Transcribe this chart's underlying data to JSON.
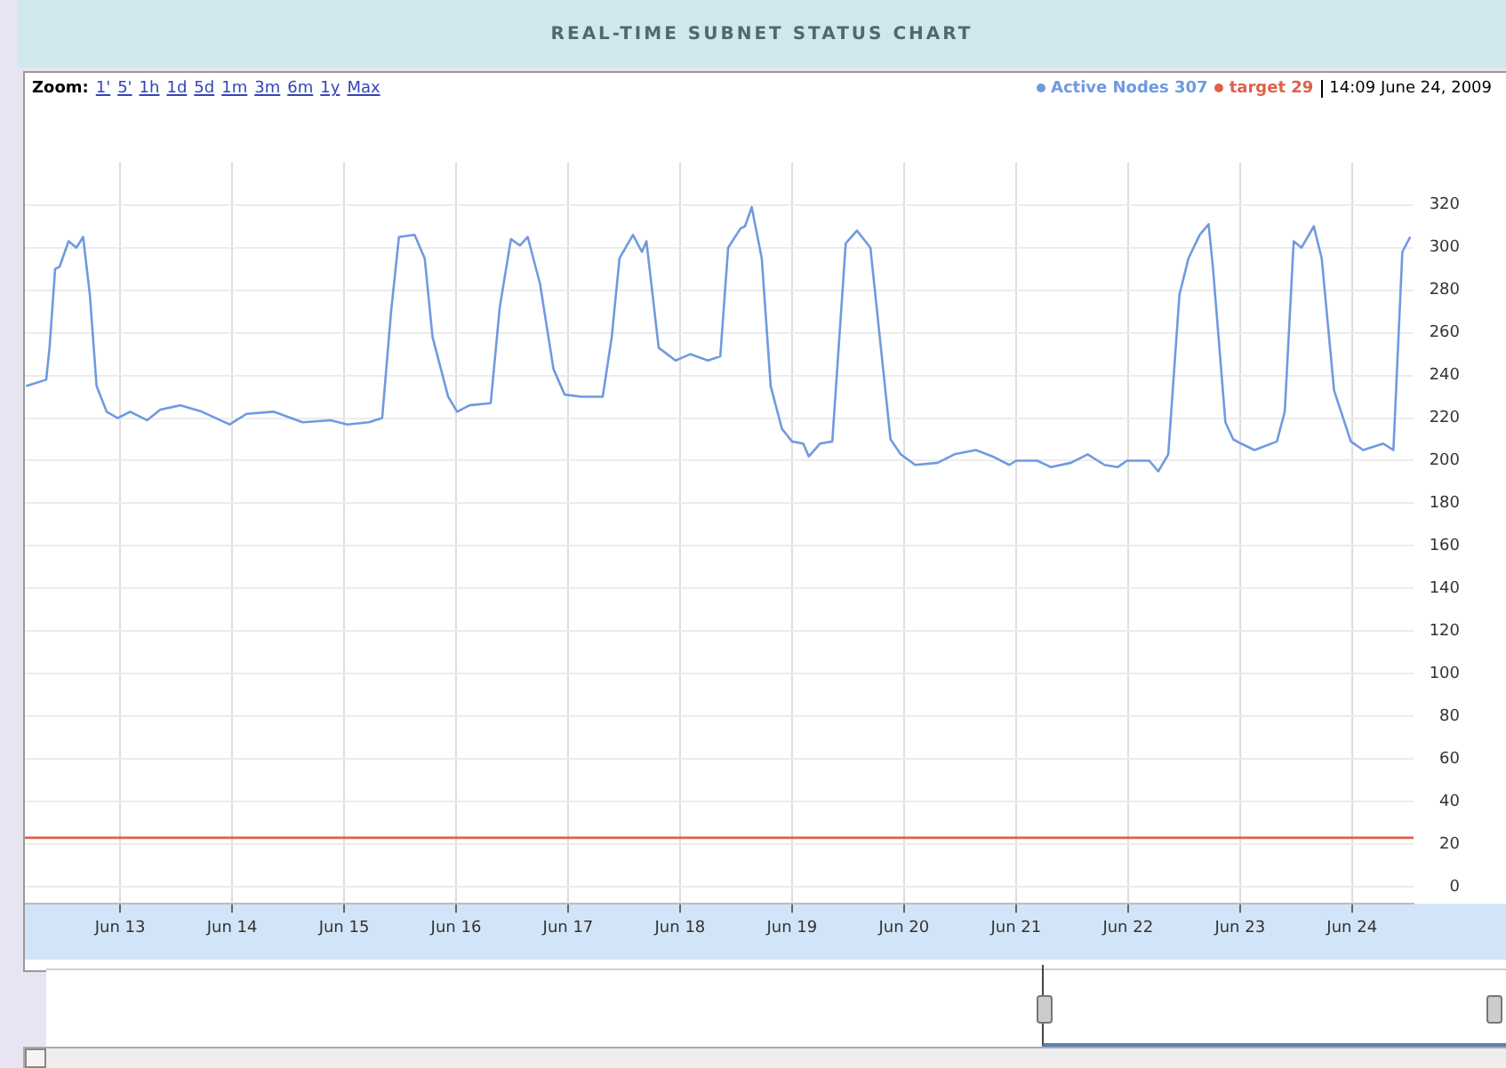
{
  "chart_data": {
    "type": "line",
    "title": "REAL-TIME SUBNET STATUS CHART",
    "annotations": [
      "Zoom: 1' 5' 1h 1d 5d 1m 3m 6m 1y Max",
      "14:09 June 24, 2009"
    ],
    "series": [
      {
        "name": "Active Nodes 307",
        "color": "#6f9ae0",
        "x": [
          "2009-06-12T03:50",
          "2009-06-12T08:10",
          "2009-06-12T08:53",
          "2009-06-12T10:05",
          "2009-06-12T11:02",
          "2009-06-12T12:58",
          "2009-06-12T14:38",
          "2009-06-12T16:05",
          "2009-06-12T17:31",
          "2009-06-12T18:58",
          "2009-06-12T21:07",
          "2009-06-12T23:31",
          "2009-06-13T02:10",
          "2009-06-13T05:46",
          "2009-06-13T08:38",
          "2009-06-13T12:58",
          "2009-06-13T17:31",
          "2009-06-13T23:31",
          "2009-06-14T03:07",
          "2009-06-14T08:53",
          "2009-06-14T15:07",
          "2009-06-14T21:07",
          "2009-06-15T00:43",
          "2009-06-15T05:17",
          "2009-06-15T08:10",
          "2009-06-15T10:05",
          "2009-06-15T11:46",
          "2009-06-15T15:07",
          "2009-06-15T17:17",
          "2009-06-15T18:58",
          "2009-06-15T22:19",
          "2009-06-16T00:14",
          "2009-06-16T02:53",
          "2009-06-16T07:26",
          "2009-06-16T09:22",
          "2009-06-16T11:46",
          "2009-06-16T13:41",
          "2009-06-16T15:22",
          "2009-06-16T18:00",
          "2009-06-16T20:53",
          "2009-06-16T23:17",
          "2009-06-17T02:53",
          "2009-06-17T07:26",
          "2009-06-17T09:22",
          "2009-06-17T11:02",
          "2009-06-17T13:55",
          "2009-06-17T15:50",
          "2009-06-17T16:48",
          "2009-06-17T19:26",
          "2009-06-17T23:02",
          "2009-06-18T02:10",
          "2009-06-18T06:00",
          "2009-06-18T08:38",
          "2009-06-18T10:19",
          "2009-06-18T12:58",
          "2009-06-18T13:55",
          "2009-06-18T15:22",
          "2009-06-18T17:31",
          "2009-06-18T19:26",
          "2009-06-18T21:50",
          "2009-06-19T00:00",
          "2009-06-19T02:24",
          "2009-06-19T03:36",
          "2009-06-19T06:00",
          "2009-06-19T08:38",
          "2009-06-19T11:31",
          "2009-06-19T13:55",
          "2009-06-19T16:48",
          "2009-06-19T19:26",
          "2009-06-19T21:07",
          "2009-06-19T23:17",
          "2009-06-20T02:24",
          "2009-06-20T07:12",
          "2009-06-20T10:48",
          "2009-06-20T15:22",
          "2009-06-20T18:58",
          "2009-06-20T22:34",
          "2009-06-21T00:00",
          "2009-06-21T04:34",
          "2009-06-21T07:26",
          "2009-06-21T11:46",
          "2009-06-21T15:22",
          "2009-06-21T18:58",
          "2009-06-21T21:50",
          "2009-06-21T23:46",
          "2009-06-22T04:34",
          "2009-06-22T06:29",
          "2009-06-22T08:38",
          "2009-06-22T11:02",
          "2009-06-22T12:58",
          "2009-06-22T15:22",
          "2009-06-22T17:17",
          "2009-06-22T18:14",
          "2009-06-22T20:53",
          "2009-06-22T22:34",
          "2009-06-23T00:14",
          "2009-06-23T03:07",
          "2009-06-23T07:55",
          "2009-06-23T09:36",
          "2009-06-23T11:31",
          "2009-06-23T13:12",
          "2009-06-23T15:50",
          "2009-06-23T17:31",
          "2009-06-23T20:10",
          "2009-06-23T23:46",
          "2009-06-24T02:24",
          "2009-06-24T06:43",
          "2009-06-24T08:53",
          "2009-06-24T10:48",
          "2009-06-24T12:29"
        ],
        "values": [
          235,
          238,
          253,
          290,
          291,
          303,
          300,
          305,
          278,
          235,
          223,
          220,
          223,
          219,
          224,
          226,
          223,
          217,
          222,
          223,
          218,
          219,
          217,
          218,
          220,
          270,
          305,
          306,
          295,
          258,
          230,
          223,
          226,
          227,
          272,
          304,
          301,
          305,
          283,
          243,
          231,
          230,
          230,
          258,
          295,
          306,
          298,
          303,
          253,
          247,
          250,
          247,
          249,
          300,
          309,
          310,
          319,
          295,
          235,
          215,
          209,
          208,
          202,
          208,
          209,
          302,
          308,
          300,
          245,
          210,
          203,
          198,
          199,
          203,
          205,
          202,
          198,
          200,
          200,
          197,
          199,
          203,
          198,
          197,
          200,
          200,
          195,
          203,
          278,
          295,
          306,
          311,
          290,
          218,
          210,
          208,
          205,
          209,
          223,
          303,
          300,
          310,
          295,
          233,
          209,
          205,
          208,
          205,
          298,
          305
        ]
      },
      {
        "name": "target 29",
        "color": "#e0604a",
        "x": [
          "2009-06-12T03:36",
          "2009-06-24T13:12"
        ],
        "values": [
          23,
          23
        ]
      }
    ],
    "xlim": [
      "2009-06-12T03:36",
      "2009-06-24T13:12"
    ],
    "xticks": [
      {
        "value": "2009-06-13",
        "label": "Jun 13"
      },
      {
        "value": "2009-06-14",
        "label": "Jun 14"
      },
      {
        "value": "2009-06-15",
        "label": "Jun 15"
      },
      {
        "value": "2009-06-16",
        "label": "Jun 16"
      },
      {
        "value": "2009-06-17",
        "label": "Jun 17"
      },
      {
        "value": "2009-06-18",
        "label": "Jun 18"
      },
      {
        "value": "2009-06-19",
        "label": "Jun 19"
      },
      {
        "value": "2009-06-20",
        "label": "Jun 20"
      },
      {
        "value": "2009-06-21",
        "label": "Jun 21"
      },
      {
        "value": "2009-06-22",
        "label": "Jun 22"
      },
      {
        "value": "2009-06-23",
        "label": "Jun 23"
      },
      {
        "value": "2009-06-24",
        "label": "Jun 24"
      }
    ],
    "ylim": [
      -8,
      340
    ],
    "yticks": [
      0,
      20,
      40,
      60,
      80,
      100,
      120,
      140,
      160,
      180,
      200,
      220,
      240,
      260,
      280,
      300,
      320
    ],
    "grid": true,
    "legend": "top right",
    "marker": "none",
    "line_style": "solid"
  }
}
